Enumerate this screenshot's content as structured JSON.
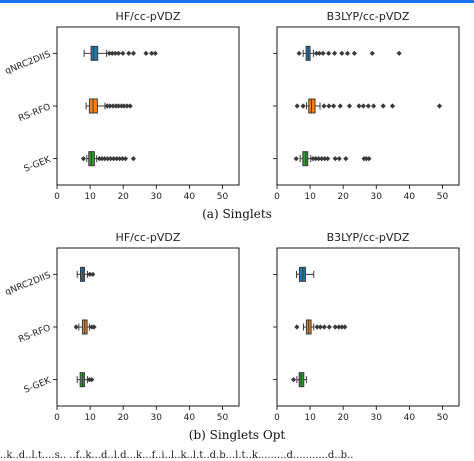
{
  "captions": {
    "a": "(a) Singlets",
    "b": "(b) Singlets Opt"
  },
  "footer_text": "..k..d..l.t....s.. ..f..k...d..l.d...k...f..i..l..k..l.t..d.b...l.t..k.........d...........d..b..",
  "colors": {
    "qnrc2diis": "#1f77b4",
    "rsrfo": "#ff7f0e",
    "sgek": "#2ca02c",
    "topbar": "#1a73e8"
  },
  "chart_data": [
    {
      "type": "box",
      "panel": "a-left",
      "title": "HF/cc-pVDZ",
      "categories": [
        "qNRC2DIIS",
        "RS-RFO",
        "S-GEK"
      ],
      "xlim": [
        0,
        55
      ],
      "xticks": [
        "0",
        "10",
        "20",
        "30",
        "40",
        "50"
      ],
      "grid": false,
      "series": [
        {
          "q1": 10.3,
          "median": 11.1,
          "q3": 12.3,
          "whisker_low": 8.2,
          "whisker_high": 15.0,
          "outliers": [
            15.8,
            16.7,
            17.6,
            18.6,
            19.9,
            21.7,
            23.1,
            26.9,
            28.6,
            29.7
          ]
        },
        {
          "q1": 9.8,
          "median": 10.9,
          "q3": 12.2,
          "whisker_low": 8.8,
          "whisker_high": 14.5,
          "outliers": [
            15.2,
            16.0,
            16.9,
            17.8,
            18.6,
            19.5,
            20.3,
            21.2,
            22.1
          ]
        },
        {
          "q1": 9.6,
          "median": 10.4,
          "q3": 11.3,
          "whisker_low": 9.0,
          "whisker_high": 12.0,
          "outliers": [
            8.0,
            12.8,
            13.6,
            14.4,
            15.3,
            16.2,
            17.1,
            18.0,
            18.9,
            19.8,
            20.7,
            23.1
          ]
        }
      ]
    },
    {
      "type": "box",
      "panel": "a-right",
      "title": "B3LYP/cc-pVDZ",
      "categories": [
        "qNRC2DIIS",
        "RS-RFO",
        "S-GEK"
      ],
      "xlim": [
        0,
        55
      ],
      "xticks": [
        "0",
        "10",
        "20",
        "30",
        "40",
        "50"
      ],
      "grid": false,
      "series": [
        {
          "q1": 8.8,
          "median": 9.4,
          "q3": 10.0,
          "whisker_low": 7.9,
          "whisker_high": 11.0,
          "outliers": [
            6.7,
            11.9,
            12.8,
            13.9,
            15.6,
            17.4,
            19.6,
            21.3,
            23.4,
            28.8,
            36.9
          ]
        },
        {
          "q1": 9.6,
          "median": 10.4,
          "q3": 11.5,
          "whisker_low": 8.9,
          "whisker_high": 13.0,
          "outliers": [
            6.1,
            7.9,
            14.2,
            15.7,
            17.1,
            19.1,
            21.9,
            24.8,
            26.1,
            27.6,
            29.2,
            32.1,
            34.9,
            49.1
          ]
        },
        {
          "q1": 7.8,
          "median": 8.7,
          "q3": 9.3,
          "whisker_low": 7.0,
          "whisker_high": 10.2,
          "outliers": [
            5.8,
            10.9,
            11.7,
            12.6,
            13.5,
            14.4,
            15.3,
            17.6,
            18.8,
            20.8,
            26.3,
            27.0,
            27.8
          ]
        }
      ]
    },
    {
      "type": "box",
      "panel": "b-left",
      "title": "HF/cc-pVDZ",
      "categories": [
        "qNRC2DIIS",
        "RS-RFO",
        "S-GEK"
      ],
      "xlim": [
        0,
        55
      ],
      "xticks": [
        "0",
        "10",
        "20",
        "30",
        "40",
        "50"
      ],
      "grid": false,
      "series": [
        {
          "q1": 7.1,
          "median": 7.8,
          "q3": 8.3,
          "whisker_low": 6.1,
          "whisker_high": 9.2,
          "outliers": [
            9.9,
            10.8
          ]
        },
        {
          "q1": 7.7,
          "median": 8.4,
          "q3": 9.1,
          "whisker_low": 6.6,
          "whisker_high": 9.8,
          "outliers": [
            5.8,
            10.5,
            11.2
          ]
        },
        {
          "q1": 7.0,
          "median": 7.7,
          "q3": 8.3,
          "whisker_low": 6.1,
          "whisker_high": 9.2,
          "outliers": [
            9.8,
            10.5
          ]
        }
      ]
    },
    {
      "type": "box",
      "panel": "b-right",
      "title": "B3LYP/cc-pVDZ",
      "categories": [
        "qNRC2DIIS",
        "RS-RFO",
        "S-GEK"
      ],
      "xlim": [
        0,
        55
      ],
      "xticks": [
        "0",
        "10",
        "20",
        "30",
        "40",
        "50"
      ],
      "grid": false,
      "series": [
        {
          "q1": 6.8,
          "median": 7.8,
          "q3": 8.6,
          "whisker_low": 5.9,
          "whisker_high": 11.1,
          "outliers": []
        },
        {
          "q1": 8.9,
          "median": 9.6,
          "q3": 10.3,
          "whisker_low": 8.0,
          "whisker_high": 11.1,
          "outliers": [
            6.0,
            12.1,
            13.1,
            14.3,
            15.8,
            17.6,
            18.7,
            19.6,
            20.5
          ]
        },
        {
          "q1": 6.7,
          "median": 7.3,
          "q3": 8.1,
          "whisker_low": 6.0,
          "whisker_high": 8.9,
          "outliers": [
            5.0
          ]
        }
      ]
    }
  ]
}
